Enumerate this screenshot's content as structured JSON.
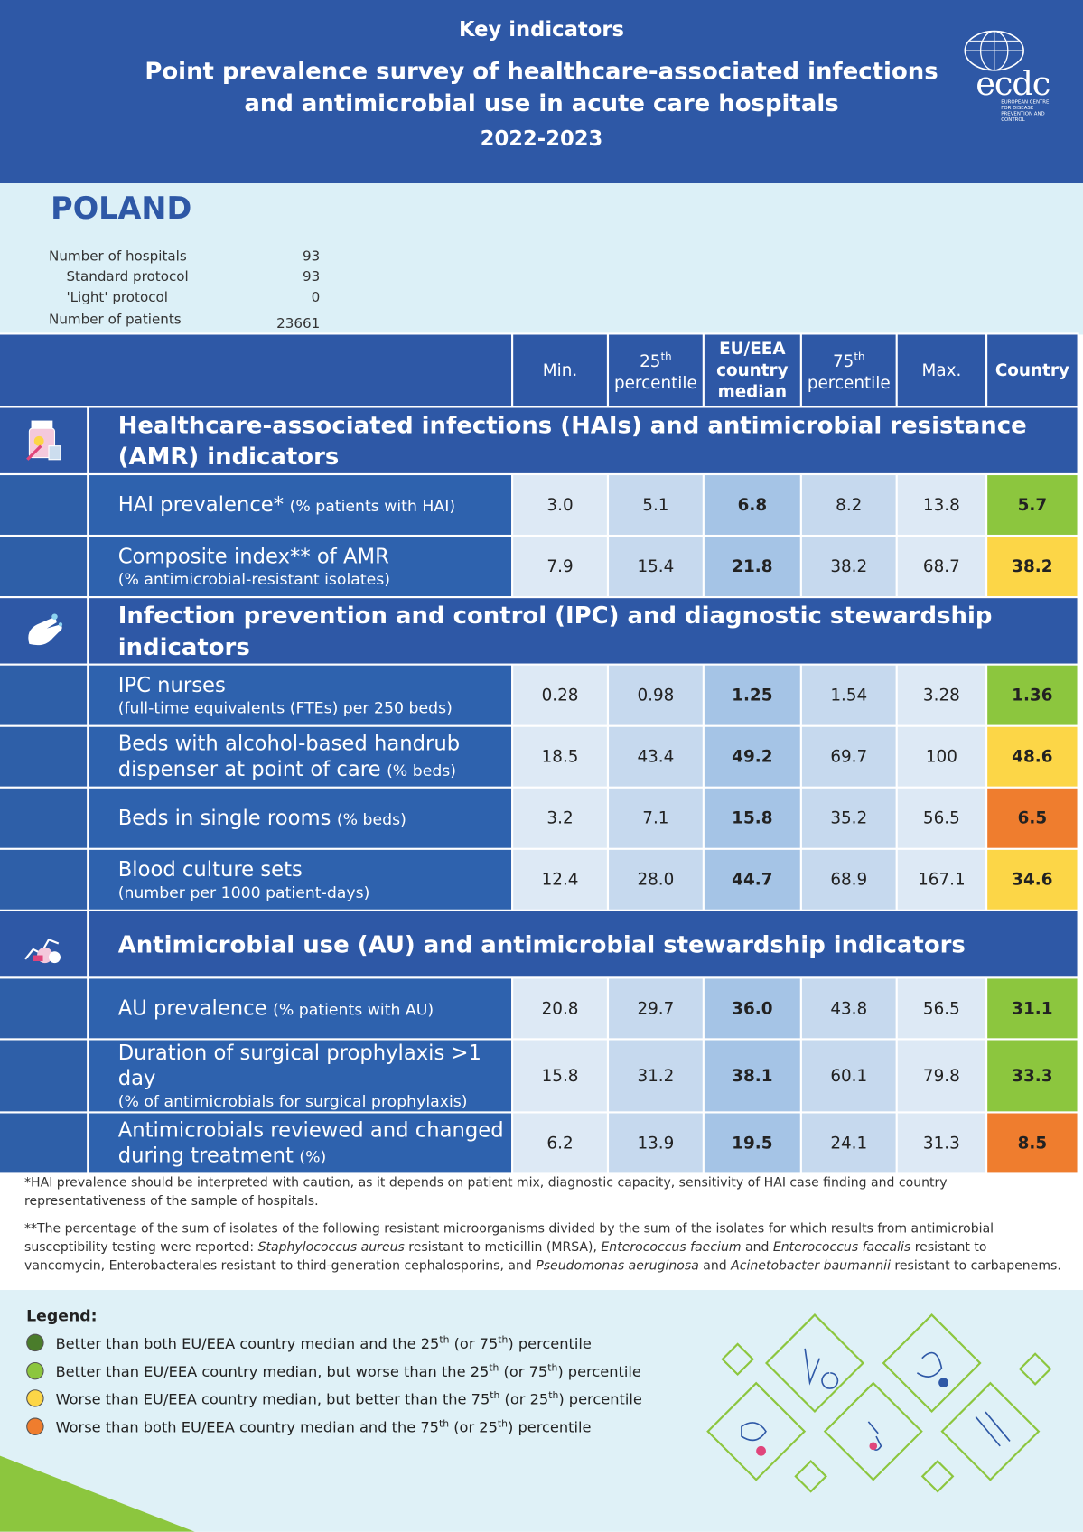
{
  "header": {
    "kicker": "Key indicators",
    "title_lines": [
      "Point prevalence survey of healthcare-associated infections",
      "and antimicrobial use in acute care hospitals"
    ],
    "years": "2022-2023",
    "logo": {
      "name": "ecdc",
      "caption": "EUROPEAN CENTRE FOR DISEASE PREVENTION AND CONTROL"
    }
  },
  "country": "POLAND",
  "hospital_info": [
    {
      "label": "Number of hospitals",
      "value": 93,
      "indent": false
    },
    {
      "label": "Standard protocol",
      "value": 93,
      "indent": true
    },
    {
      "label": "'Light' protocol",
      "value": 0,
      "indent": true
    },
    {
      "label": "Number of patients",
      "value": 23661,
      "indent": false
    }
  ],
  "table": {
    "columns": [
      {
        "text": "Min."
      },
      {
        "num": "25",
        "sup": "th",
        "text": "percentile"
      },
      {
        "text": "EU/EEA country median"
      },
      {
        "num": "75",
        "sup": "th",
        "text": "percentile"
      },
      {
        "text": "Max."
      },
      {
        "text": "Country"
      }
    ],
    "sections": [
      {
        "title": "Healthcare-associated infections (HAIs) and antimicrobial resistance (AMR) indicators",
        "rows": [
          {
            "label": "HAI prevalence*",
            "note": "(% patients with HAI)",
            "values": [
              "3.0",
              "5.1",
              "6.8",
              "8.2",
              "13.8",
              "5.7"
            ],
            "color": "#8cc63e"
          },
          {
            "label": "Composite index** of AMR",
            "note": "(% antimicrobial-resistant isolates)",
            "values": [
              "7.9",
              "15.4",
              "21.8",
              "38.2",
              "68.7",
              "38.2"
            ],
            "color": "#fcd647"
          }
        ]
      },
      {
        "title": "Infection prevention and control (IPC) and diagnostic stewardship indicators",
        "rows": [
          {
            "label": "IPC nurses",
            "note": "(full-time equivalents (FTEs) per 250 beds)",
            "values": [
              "0.28",
              "0.98",
              "1.25",
              "1.54",
              "3.28",
              "1.36"
            ],
            "color": "#8cc63e"
          },
          {
            "label": "Beds with alcohol-based handrub dispenser at point of care",
            "note": "(% beds)",
            "values": [
              "18.5",
              "43.4",
              "49.2",
              "69.7",
              "100",
              "48.6"
            ],
            "color": "#fcd647"
          },
          {
            "label": "Beds in single rooms",
            "note": "(% beds)",
            "values": [
              "3.2",
              "7.1",
              "15.8",
              "35.2",
              "56.5",
              "6.5"
            ],
            "color": "#ef7d2e"
          },
          {
            "label": "Blood culture sets",
            "note": "(number per 1000 patient-days)",
            "values": [
              "12.4",
              "28.0",
              "44.7",
              "68.9",
              "167.1",
              "34.6"
            ],
            "color": "#fcd647"
          }
        ]
      },
      {
        "title": "Antimicrobial use (AU) and antimicrobial stewardship indicators",
        "rows": [
          {
            "label": "AU prevalence",
            "note": "(% patients with AU)",
            "values": [
              "20.8",
              "29.7",
              "36.0",
              "43.8",
              "56.5",
              "31.1"
            ],
            "color": "#8cc63e"
          },
          {
            "label": "Duration of surgical prophylaxis >1 day",
            "note": "(% of antimicrobials for surgical prophylaxis)",
            "values": [
              "15.8",
              "31.2",
              "38.1",
              "60.1",
              "79.8",
              "33.3"
            ],
            "color": "#8cc63e"
          },
          {
            "label": "Antimicrobials reviewed and changed during treatment",
            "note": "(%)",
            "values": [
              "6.2",
              "13.9",
              "19.5",
              "24.1",
              "31.3",
              "8.5"
            ],
            "color": "#ef7d2e"
          }
        ]
      }
    ]
  },
  "footnotes": [
    [
      {
        "text": "*HAI prevalence should be interpreted with caution, as it depends on patient mix, diagnostic capacity, sensitivity of HAI case finding and country representativeness of the sample of hospitals."
      }
    ],
    [
      {
        "text": "**The percentage of the sum of isolates of the following resistant microorganisms divided by the sum of the isolates for which results from antimicrobial susceptibility testing were reported: "
      },
      {
        "text": "Staphylococcus aureus",
        "italic": true
      },
      {
        "text": " resistant to meticillin (MRSA), "
      },
      {
        "text": "Enterococcus faecium",
        "italic": true
      },
      {
        "text": " and "
      },
      {
        "text": "Enterococcus faecalis",
        "italic": true
      },
      {
        "text": " resistant to vancomycin, Enterobacterales resistant to third-generation cephalosporins, and "
      },
      {
        "text": "Pseudomonas aeruginosa",
        "italic": true
      },
      {
        "text": " and "
      },
      {
        "text": "Acinetobacter baumannii",
        "italic": true
      },
      {
        "text": " resistant to carbapenems."
      }
    ]
  ],
  "legend": {
    "title": "Legend:",
    "items": [
      {
        "color": "#4a7c2b",
        "parts": [
          "Better than both EU/EEA country median and the 25",
          "th",
          " (or 75",
          "th",
          ") percentile"
        ]
      },
      {
        "color": "#8cc63e",
        "parts": [
          "Better than EU/EEA country median, but worse than the 25",
          "th",
          " (or 75",
          "th",
          ") percentile"
        ]
      },
      {
        "color": "#fcd647",
        "parts": [
          "Worse than EU/EEA country median, but better than the 75",
          "th",
          " (or 25",
          "th",
          ") percentile"
        ]
      },
      {
        "color": "#ef7d2e",
        "parts": [
          "Worse than both EU/EEA country median and the 75",
          "th",
          " (or 25",
          "th",
          ") percentile"
        ]
      }
    ]
  }
}
